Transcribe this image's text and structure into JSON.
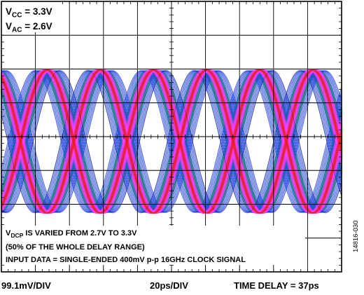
{
  "chart_data": {
    "type": "eye-diagram",
    "trace": {
      "description_hidden": false,
      "unit_intervals_shown": 6.4,
      "colors": [
        "#1f3fe0",
        "#3cc43c",
        "#ff3cff",
        "#e8201e",
        "#ff9a9a",
        "#1a1a1a"
      ]
    },
    "grid": {
      "divisions_x": 10,
      "divisions_y": 8,
      "minor_ticks": 5
    },
    "annotations": {
      "vcc": {
        "base": "V",
        "sub": "CC",
        "value": " = 3.3V"
      },
      "vac": {
        "base": "V",
        "sub": "AC",
        "value": " = 2.6V"
      },
      "vdcp": {
        "base": "V",
        "sub": "DCP",
        "text": " IS VARIED FROM 2.7V TO 3.3V"
      },
      "range_note": "(50% OF THE WHOLE DELAY RANGE)",
      "input_note": "INPUT DATA = SINGLE-ENDED 400mV p-p 16GHz CLOCK SIGNAL"
    },
    "scale": {
      "vertical": "99.1mV/DIV",
      "horizontal": "20ps/DIV",
      "time_delay": "TIME DELAY = 37ps"
    },
    "figure_id": "14816-030"
  }
}
